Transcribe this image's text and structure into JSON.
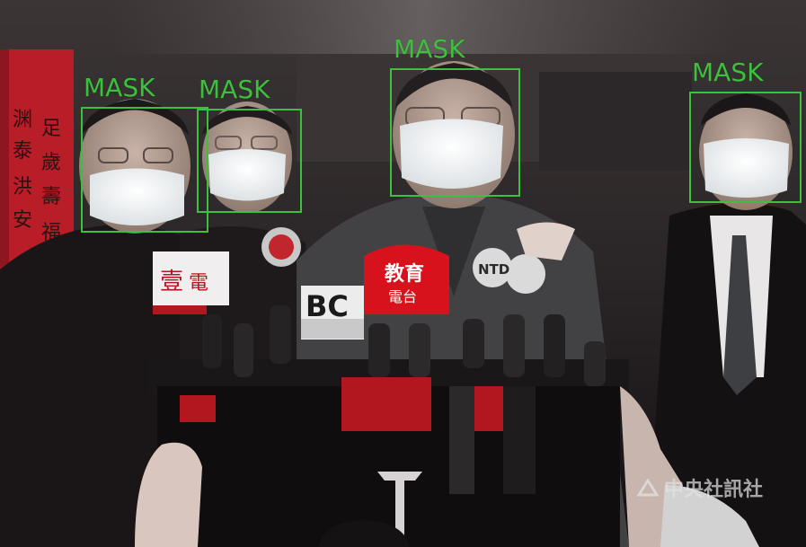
{
  "image": {
    "description_colors": {
      "box": "#3cc13c",
      "label": "#3cc13c",
      "backdrop": "#2a2627",
      "wall_red": "#b81d28"
    }
  },
  "detections": [
    {
      "label": "MASK",
      "color": "#3cc13c"
    },
    {
      "label": "MASK",
      "color": "#3cc13c"
    },
    {
      "label": "MASK",
      "color": "#3cc13c"
    },
    {
      "label": "MASK",
      "color": "#3cc13c"
    }
  ],
  "watermark": {
    "text": "中央社訊社",
    "icon": "cna-logo-icon"
  },
  "signage": {
    "left_banner": "渊 泰 洪 安 足 歲 壽 福",
    "mic_flag_1": "壹電視",
    "mic_flag_2": "BC",
    "mic_flag_3": "教育 電台",
    "mic_flag_4": "NTD"
  }
}
